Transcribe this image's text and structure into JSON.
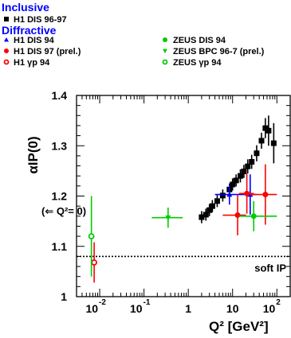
{
  "chart_data": {
    "type": "scatter",
    "title": "",
    "xlabel": "Q² [GeV²]",
    "ylabel": "αIP(0)",
    "x_scale": "log",
    "xlim": [
      0.003,
      200
    ],
    "ylim": [
      1.0,
      1.4
    ],
    "y_ticks": [
      "1",
      "1.1",
      "1.2",
      "1.3",
      "1.4"
    ],
    "x_ticks": [
      {
        "v": 0.01,
        "base": "10",
        "exp": "-2"
      },
      {
        "v": 0.1,
        "base": "10",
        "exp": "-1"
      },
      {
        "v": 1,
        "base": "1",
        "exp": ""
      },
      {
        "v": 10,
        "base": "10",
        "exp": ""
      },
      {
        "v": 100,
        "base": "10",
        "exp": "2"
      }
    ],
    "legend": {
      "placement": "top-left",
      "headers": {
        "inclusive": "Inclusive",
        "diffractive": "Diffractive"
      },
      "entries": [
        {
          "label": "H1 DIS 96-97",
          "marker": "square-filled",
          "color": "#000000",
          "group": "inclusive"
        },
        {
          "label": "H1 DIS 94",
          "marker": "triangle-up",
          "color": "#0000ff",
          "group": "diffractive"
        },
        {
          "label": "H1 DIS 97 (prel.)",
          "marker": "circle-filled",
          "color": "#ff0000",
          "group": "diffractive"
        },
        {
          "label": "H1 γp 94",
          "marker": "circle-open",
          "color": "#ff0000",
          "group": "diffractive"
        },
        {
          "label": "ZEUS DIS 94",
          "marker": "circle-filled",
          "color": "#00cc00",
          "group": "diffractive"
        },
        {
          "label": "ZEUS BPC 96-7 (prel.)",
          "marker": "triangle-down",
          "color": "#00cc00",
          "group": "diffractive"
        },
        {
          "label": "ZEUS γp 94",
          "marker": "circle-open",
          "color": "#00cc00",
          "group": "diffractive"
        }
      ]
    },
    "annotations": {
      "q2zero": "(⇐ Q²= 0)",
      "soft": "soft IP"
    },
    "reference_line": {
      "y": 1.08,
      "style": "dotted",
      "label": "soft IP"
    },
    "series": [
      {
        "name": "H1 DIS 96-97",
        "marker": "square-filled",
        "color": "#000000",
        "points": [
          {
            "x": 2.0,
            "y": 1.158,
            "xerr": 0,
            "yerr": 0.012
          },
          {
            "x": 2.5,
            "y": 1.163,
            "xerr": 0,
            "yerr": 0.012
          },
          {
            "x": 3.0,
            "y": 1.172,
            "xerr": 0,
            "yerr": 0.012
          },
          {
            "x": 3.5,
            "y": 1.18,
            "xerr": 0,
            "yerr": 0.012
          },
          {
            "x": 4.5,
            "y": 1.19,
            "xerr": 0,
            "yerr": 0.012
          },
          {
            "x": 6.0,
            "y": 1.201,
            "xerr": 0,
            "yerr": 0.012
          },
          {
            "x": 8.5,
            "y": 1.213,
            "xerr": 0,
            "yerr": 0.012
          },
          {
            "x": 10.0,
            "y": 1.223,
            "xerr": 0,
            "yerr": 0.012
          },
          {
            "x": 12.0,
            "y": 1.231,
            "xerr": 0,
            "yerr": 0.012
          },
          {
            "x": 15.0,
            "y": 1.24,
            "xerr": 0,
            "yerr": 0.013
          },
          {
            "x": 18.0,
            "y": 1.249,
            "xerr": 0,
            "yerr": 0.013
          },
          {
            "x": 22.0,
            "y": 1.259,
            "xerr": 0,
            "yerr": 0.014
          },
          {
            "x": 27.0,
            "y": 1.268,
            "xerr": 0,
            "yerr": 0.014
          },
          {
            "x": 35.0,
            "y": 1.285,
            "xerr": 0,
            "yerr": 0.016
          },
          {
            "x": 45.0,
            "y": 1.31,
            "xerr": 0,
            "yerr": 0.016
          },
          {
            "x": 55.0,
            "y": 1.335,
            "xerr": 0,
            "yerr": 0.02
          },
          {
            "x": 65.0,
            "y": 1.33,
            "xerr": 0,
            "yerr": 0.03
          },
          {
            "x": 85.0,
            "y": 1.305,
            "xerr": 0,
            "yerr": 0.04
          }
        ]
      },
      {
        "name": "H1 DIS 94",
        "marker": "triangle-up",
        "color": "#0000ff",
        "points": [
          {
            "x": 8.5,
            "y": 1.203,
            "xerr": [
              4.0,
              12.5
            ],
            "yerr": 0.02
          },
          {
            "x": 25.0,
            "y": 1.203,
            "xerr": [
              12.5,
              35.0
            ],
            "yerr": 0.04
          }
        ]
      },
      {
        "name": "H1 DIS 97 (prel.)",
        "marker": "circle-filled",
        "color": "#ff0000",
        "points": [
          {
            "x": 13.0,
            "y": 1.162,
            "xerr": [
              6.0,
              20.0
            ],
            "yerr": 0.04
          },
          {
            "x": 21.0,
            "y": 1.205,
            "xerr": [
              14.0,
              30.0
            ],
            "yerr": 0.04
          },
          {
            "x": 55.0,
            "y": 1.203,
            "xerr": [
              25.0,
              100.0
            ],
            "yerr": 0.06
          }
        ]
      },
      {
        "name": "H1 γp 94",
        "marker": "circle-open",
        "color": "#ff0000",
        "points": [
          {
            "x": 0.0075,
            "y": 1.068,
            "xerr": 0,
            "yerr": 0.04
          }
        ]
      },
      {
        "name": "ZEUS DIS 94",
        "marker": "circle-filled",
        "color": "#00cc00",
        "points": [
          {
            "x": 30.0,
            "y": 1.16,
            "xerr": [
              14.0,
              100.0
            ],
            "yerr": 0.03
          }
        ]
      },
      {
        "name": "ZEUS BPC 96-7 (prel.)",
        "marker": "triangle-down",
        "color": "#00cc00",
        "points": [
          {
            "x": 0.35,
            "y": 1.157,
            "xerr": [
              0.15,
              0.75
            ],
            "yerr": 0.02
          }
        ]
      },
      {
        "name": "ZEUS γp 94",
        "marker": "circle-open",
        "color": "#00cc00",
        "points": [
          {
            "x": 0.0065,
            "y": 1.12,
            "xerr": 0,
            "yerr": 0.08
          }
        ]
      }
    ]
  }
}
